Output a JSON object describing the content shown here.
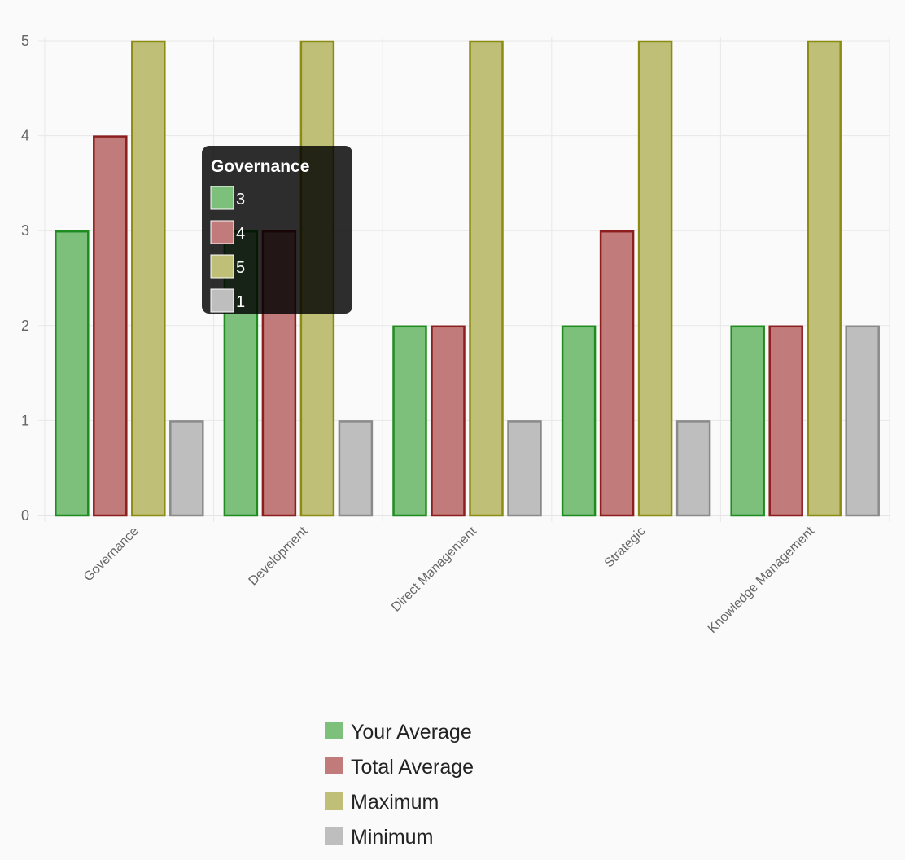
{
  "chart_data": {
    "type": "bar",
    "categories": [
      "Governance",
      "Development",
      "Direct Management",
      "Strategic",
      "Knowledge Management"
    ],
    "series": [
      {
        "name": "Your Average",
        "values": [
          3,
          3,
          2,
          2,
          2
        ],
        "fill": "#7cc07c",
        "stroke": "#1e8c1e"
      },
      {
        "name": "Total Average",
        "values": [
          4,
          3,
          2,
          3,
          2
        ],
        "fill": "#c27b7b",
        "stroke": "#8c1e1e"
      },
      {
        "name": "Maximum",
        "values": [
          5,
          5,
          5,
          5,
          5
        ],
        "fill": "#bfbf78",
        "stroke": "#8c8c14"
      },
      {
        "name": "Minimum",
        "values": [
          1,
          1,
          1,
          1,
          2
        ],
        "fill": "#bebebe",
        "stroke": "#8a8a8a"
      }
    ],
    "ylim": [
      0,
      5
    ],
    "yticks": [
      0,
      1,
      2,
      3,
      4,
      5
    ],
    "grid": true,
    "legend_position": "bottom",
    "tooltip": {
      "title": "Governance",
      "items": [
        "3",
        "4",
        "5",
        "1"
      ]
    }
  }
}
